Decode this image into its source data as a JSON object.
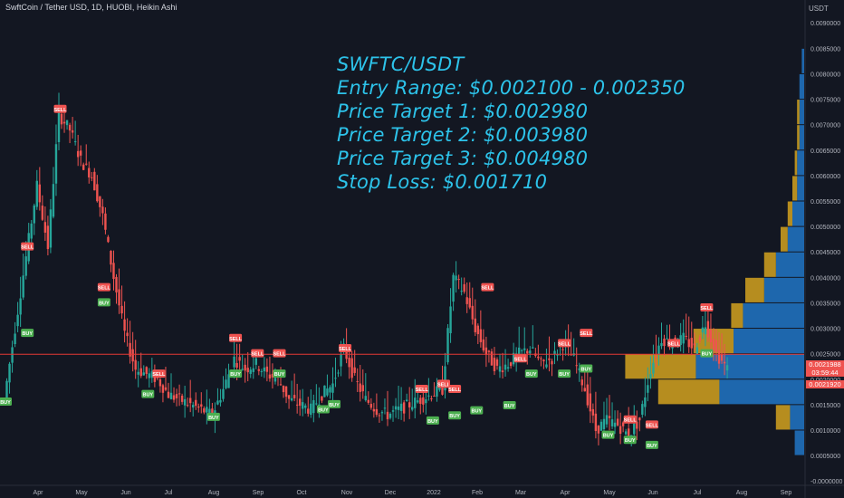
{
  "title": "SwftCoin / Tether USD, 1D, HUOBI, Heikin Ashi",
  "annotation": {
    "line1": "SWFTC/USDT",
    "line2": "Entry Range: $0.002100 - 0.002350",
    "line3": "Price Target 1: $0.002980",
    "line4": "Price Target 2: $0.003980",
    "line5": "Price Target 3: $0.004980",
    "line6": "Stop Loss: $0.001710"
  },
  "axis_unit": "USDT",
  "price_tags": {
    "current": "0.0021988",
    "countdown": "03:59:44",
    "lower": "0.0021920"
  },
  "colors": {
    "background": "#131722",
    "up": "#26a69a",
    "down": "#ef5350",
    "annotation": "#2dc3ea",
    "hline": "#e53935",
    "vp_up": "#2176c6",
    "vp_down": "#d4a21e"
  },
  "chart_data": {
    "type": "candlestick",
    "x_ticks": [
      "Apr",
      "May",
      "Jun",
      "Jul",
      "Aug",
      "Sep",
      "Oct",
      "Nov",
      "Dec",
      "2022",
      "Feb",
      "Mar",
      "Apr",
      "May",
      "Jun",
      "Jul",
      "Aug",
      "Sep"
    ],
    "y_ticks": [
      "0.0090000",
      "0.0085000",
      "0.0080000",
      "0.0075000",
      "0.0070000",
      "0.0065000",
      "0.0060000",
      "0.0055000",
      "0.0050000",
      "0.0045000",
      "0.0040000",
      "0.0035000",
      "0.0030000",
      "0.0025000",
      "0.0020000",
      "0.0015000",
      "0.0010000",
      "0.0005000",
      "-0.0000000"
    ],
    "ylim": [
      -5e-05,
      0.0092
    ],
    "horizontal_line": 0.00249,
    "price_path": [
      [
        0,
        0.0016
      ],
      [
        1,
        0.003
      ],
      [
        2,
        0.0044
      ],
      [
        3,
        0.0058
      ],
      [
        4,
        0.0046
      ],
      [
        5,
        0.0072
      ],
      [
        6,
        0.0069
      ],
      [
        7,
        0.0063
      ],
      [
        8,
        0.006
      ],
      [
        9,
        0.0052
      ],
      [
        10,
        0.004
      ],
      [
        11,
        0.0029
      ],
      [
        12,
        0.0022
      ],
      [
        13,
        0.0021
      ],
      [
        14,
        0.002
      ],
      [
        15,
        0.0017
      ],
      [
        16,
        0.0016
      ],
      [
        17,
        0.0015
      ],
      [
        18,
        0.0014
      ],
      [
        19,
        0.0013
      ],
      [
        20,
        0.0018
      ],
      [
        21,
        0.0024
      ],
      [
        22,
        0.0022
      ],
      [
        23,
        0.0023
      ],
      [
        24,
        0.0021
      ],
      [
        25,
        0.002
      ],
      [
        26,
        0.0016
      ],
      [
        27,
        0.0015
      ],
      [
        28,
        0.0014
      ],
      [
        29,
        0.0017
      ],
      [
        30,
        0.0019
      ],
      [
        31,
        0.0026
      ],
      [
        32,
        0.002
      ],
      [
        33,
        0.0016
      ],
      [
        34,
        0.0014
      ],
      [
        35,
        0.0013
      ],
      [
        36,
        0.0014
      ],
      [
        37,
        0.0015
      ],
      [
        38,
        0.0016
      ],
      [
        39,
        0.0017
      ],
      [
        40,
        0.0018
      ],
      [
        41,
        0.004
      ],
      [
        42,
        0.0037
      ],
      [
        43,
        0.003
      ],
      [
        44,
        0.0025
      ],
      [
        45,
        0.0022
      ],
      [
        46,
        0.0023
      ],
      [
        47,
        0.0025
      ],
      [
        48,
        0.0026
      ],
      [
        49,
        0.0023
      ],
      [
        50,
        0.0024
      ],
      [
        51,
        0.0027
      ],
      [
        52,
        0.0024
      ],
      [
        53,
        0.0018
      ],
      [
        54,
        0.001
      ],
      [
        55,
        0.0012
      ],
      [
        56,
        0.0011
      ],
      [
        57,
        0.0009
      ],
      [
        58,
        0.0012
      ],
      [
        59,
        0.0022
      ],
      [
        60,
        0.0028
      ],
      [
        61,
        0.0027
      ],
      [
        62,
        0.0028
      ],
      [
        63,
        0.0026
      ],
      [
        64,
        0.0031
      ],
      [
        65,
        0.0025
      ],
      [
        66,
        0.0022
      ]
    ],
    "buy_signals": [
      {
        "label": "BUY",
        "i": 0,
        "y": 0.00155
      },
      {
        "label": "BUY",
        "i": 2,
        "y": 0.0029
      },
      {
        "label": "BUY",
        "i": 9,
        "y": 0.0035
      },
      {
        "label": "BUY",
        "i": 13,
        "y": 0.0017
      },
      {
        "label": "BUY",
        "i": 19,
        "y": 0.00125
      },
      {
        "label": "BUY",
        "i": 21,
        "y": 0.0021
      },
      {
        "label": "BUY",
        "i": 25,
        "y": 0.0021
      },
      {
        "label": "BUY",
        "i": 29,
        "y": 0.0014
      },
      {
        "label": "BUY",
        "i": 30,
        "y": 0.0015
      },
      {
        "label": "BUY",
        "i": 39,
        "y": 0.00118
      },
      {
        "label": "BUY",
        "i": 41,
        "y": 0.00128
      },
      {
        "label": "BUY",
        "i": 43,
        "y": 0.00138
      },
      {
        "label": "BUY",
        "i": 46,
        "y": 0.00148
      },
      {
        "label": "BUY",
        "i": 48,
        "y": 0.0021
      },
      {
        "label": "BUY",
        "i": 51,
        "y": 0.0021
      },
      {
        "label": "BUY",
        "i": 53,
        "y": 0.0022
      },
      {
        "label": "BUY",
        "i": 55,
        "y": 0.0009
      },
      {
        "label": "BUY",
        "i": 57,
        "y": 0.0008
      },
      {
        "label": "BUY",
        "i": 59,
        "y": 0.0007
      },
      {
        "label": "BUY",
        "i": 64,
        "y": 0.0025
      }
    ],
    "sell_signals": [
      {
        "label": "SELL",
        "i": 2,
        "y": 0.0046
      },
      {
        "label": "SELL",
        "i": 5,
        "y": 0.0073
      },
      {
        "label": "SELL",
        "i": 9,
        "y": 0.0038
      },
      {
        "label": "SELL",
        "i": 14,
        "y": 0.0021
      },
      {
        "label": "SELL",
        "i": 21,
        "y": 0.0028
      },
      {
        "label": "SELL",
        "i": 23,
        "y": 0.0025
      },
      {
        "label": "SELL",
        "i": 25,
        "y": 0.0025
      },
      {
        "label": "SELL",
        "i": 31,
        "y": 0.0026
      },
      {
        "label": "SELL",
        "i": 38,
        "y": 0.0018
      },
      {
        "label": "SELL",
        "i": 40,
        "y": 0.0019
      },
      {
        "label": "SELL",
        "i": 41,
        "y": 0.0018
      },
      {
        "label": "SELL",
        "i": 44,
        "y": 0.0038
      },
      {
        "label": "SELL",
        "i": 47,
        "y": 0.0024
      },
      {
        "label": "SELL",
        "i": 51,
        "y": 0.0027
      },
      {
        "label": "SELL",
        "i": 53,
        "y": 0.0029
      },
      {
        "label": "SELL",
        "i": 57,
        "y": 0.0012
      },
      {
        "label": "SELL",
        "i": 59,
        "y": 0.0011
      },
      {
        "label": "SELL",
        "i": 61,
        "y": 0.0027
      },
      {
        "label": "SELL",
        "i": 64,
        "y": 0.0034
      }
    ],
    "volume_profile": [
      {
        "low": 0.0005,
        "high": 0.001,
        "up": 0.04,
        "down": 0.0
      },
      {
        "low": 0.001,
        "high": 0.0015,
        "up": 0.06,
        "down": 0.06
      },
      {
        "low": 0.0015,
        "high": 0.002,
        "up": 0.36,
        "down": 0.26
      },
      {
        "low": 0.002,
        "high": 0.0025,
        "up": 0.46,
        "down": 0.3
      },
      {
        "low": 0.0025,
        "high": 0.003,
        "up": 0.3,
        "down": 0.17
      },
      {
        "low": 0.003,
        "high": 0.0035,
        "up": 0.26,
        "down": 0.05
      },
      {
        "low": 0.0035,
        "high": 0.004,
        "up": 0.17,
        "down": 0.08
      },
      {
        "low": 0.004,
        "high": 0.0045,
        "up": 0.12,
        "down": 0.05
      },
      {
        "low": 0.0045,
        "high": 0.005,
        "up": 0.07,
        "down": 0.03
      },
      {
        "low": 0.005,
        "high": 0.0055,
        "up": 0.05,
        "down": 0.02
      },
      {
        "low": 0.0055,
        "high": 0.006,
        "up": 0.03,
        "down": 0.02
      },
      {
        "low": 0.006,
        "high": 0.0065,
        "up": 0.03,
        "down": 0.01
      },
      {
        "low": 0.0065,
        "high": 0.007,
        "up": 0.02,
        "down": 0.01
      },
      {
        "low": 0.007,
        "high": 0.0075,
        "up": 0.02,
        "down": 0.01
      },
      {
        "low": 0.0075,
        "high": 0.008,
        "up": 0.02,
        "down": 0.0
      },
      {
        "low": 0.008,
        "high": 0.0085,
        "up": 0.01,
        "down": 0.0
      }
    ]
  }
}
